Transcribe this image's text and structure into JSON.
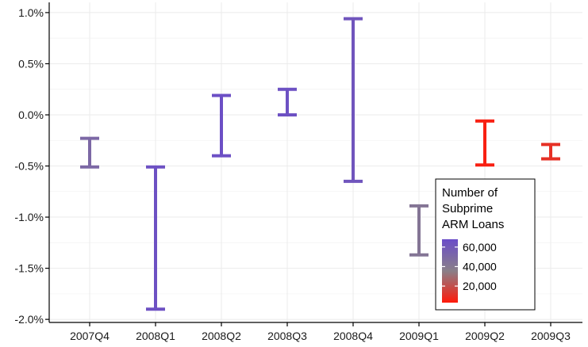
{
  "chart_data": {
    "type": "errorbar",
    "categories": [
      "2007Q4",
      "2008Q1",
      "2008Q2",
      "2008Q3",
      "2008Q4",
      "2009Q1",
      "2009Q2",
      "2009Q3"
    ],
    "series": [
      {
        "low": [
          -0.51,
          -1.9,
          -0.4,
          0.0,
          -0.65,
          -1.37,
          -0.49,
          -0.43
        ],
        "high": [
          -0.23,
          -0.51,
          0.19,
          0.25,
          0.94,
          -0.89,
          -0.06,
          -0.29
        ],
        "count": [
          50000,
          65000,
          66000,
          65000,
          62000,
          42000,
          5000,
          10000
        ]
      }
    ],
    "y_ticks": [
      1.0,
      0.5,
      0.0,
      -0.5,
      -1.0,
      -1.5,
      -2.0
    ],
    "y_tick_labels": [
      "1.0%",
      "0.5%",
      "0.0%",
      "-0.5%",
      "-1.0%",
      "-1.5%",
      "-2.0%"
    ],
    "ylim": [
      -2.03,
      1.1
    ],
    "grid": true,
    "legend": {
      "title_lines": [
        "Number of",
        "Subprime",
        "ARM Loans"
      ],
      "labels": [
        "60,000",
        "40,000",
        "20,000"
      ],
      "values": [
        60000,
        40000,
        20000
      ],
      "range": [
        3000,
        68000
      ],
      "placement": "bottom-right"
    },
    "colors": {
      "high": "#6a4cc9",
      "mid": "#8a7f88",
      "low": "#ff1a0a",
      "grid": "#ebebeb",
      "axis": "#000000"
    }
  }
}
